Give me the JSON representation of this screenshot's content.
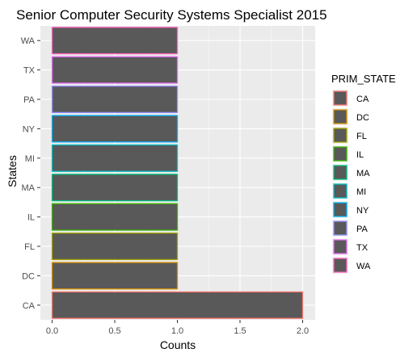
{
  "chart_data": {
    "type": "bar",
    "orientation": "horizontal",
    "title": "Senior Computer Security Systems Specialist 2015",
    "xlabel": "Counts",
    "ylabel": "States",
    "categories": [
      "CA",
      "DC",
      "FL",
      "IL",
      "MA",
      "MI",
      "NY",
      "PA",
      "TX",
      "WA"
    ],
    "values": [
      2,
      1,
      1,
      1,
      1,
      1,
      1,
      1,
      1,
      1
    ],
    "xlim": [
      0,
      2
    ],
    "xticks": [
      "0.0",
      "0.5",
      "1.0",
      "1.5",
      "2.0"
    ],
    "xtick_values": [
      0,
      0.5,
      1,
      1.5,
      2
    ],
    "grid": true,
    "legend": {
      "title": "PRIM_STATE",
      "placement": "right",
      "entries": [
        "CA",
        "DC",
        "FL",
        "IL",
        "MA",
        "MI",
        "NY",
        "PA",
        "TX",
        "WA"
      ]
    },
    "bar_fill": "#595959",
    "panel_background": "#ebebeb",
    "outline_colors": {
      "CA": "#F8766D",
      "DC": "#D89000",
      "FL": "#A3A500",
      "IL": "#39B600",
      "MA": "#00BF7D",
      "MI": "#00BFC4",
      "NY": "#00B0F6",
      "PA": "#9590FF",
      "TX": "#E76BF3",
      "WA": "#FF62BC"
    }
  }
}
